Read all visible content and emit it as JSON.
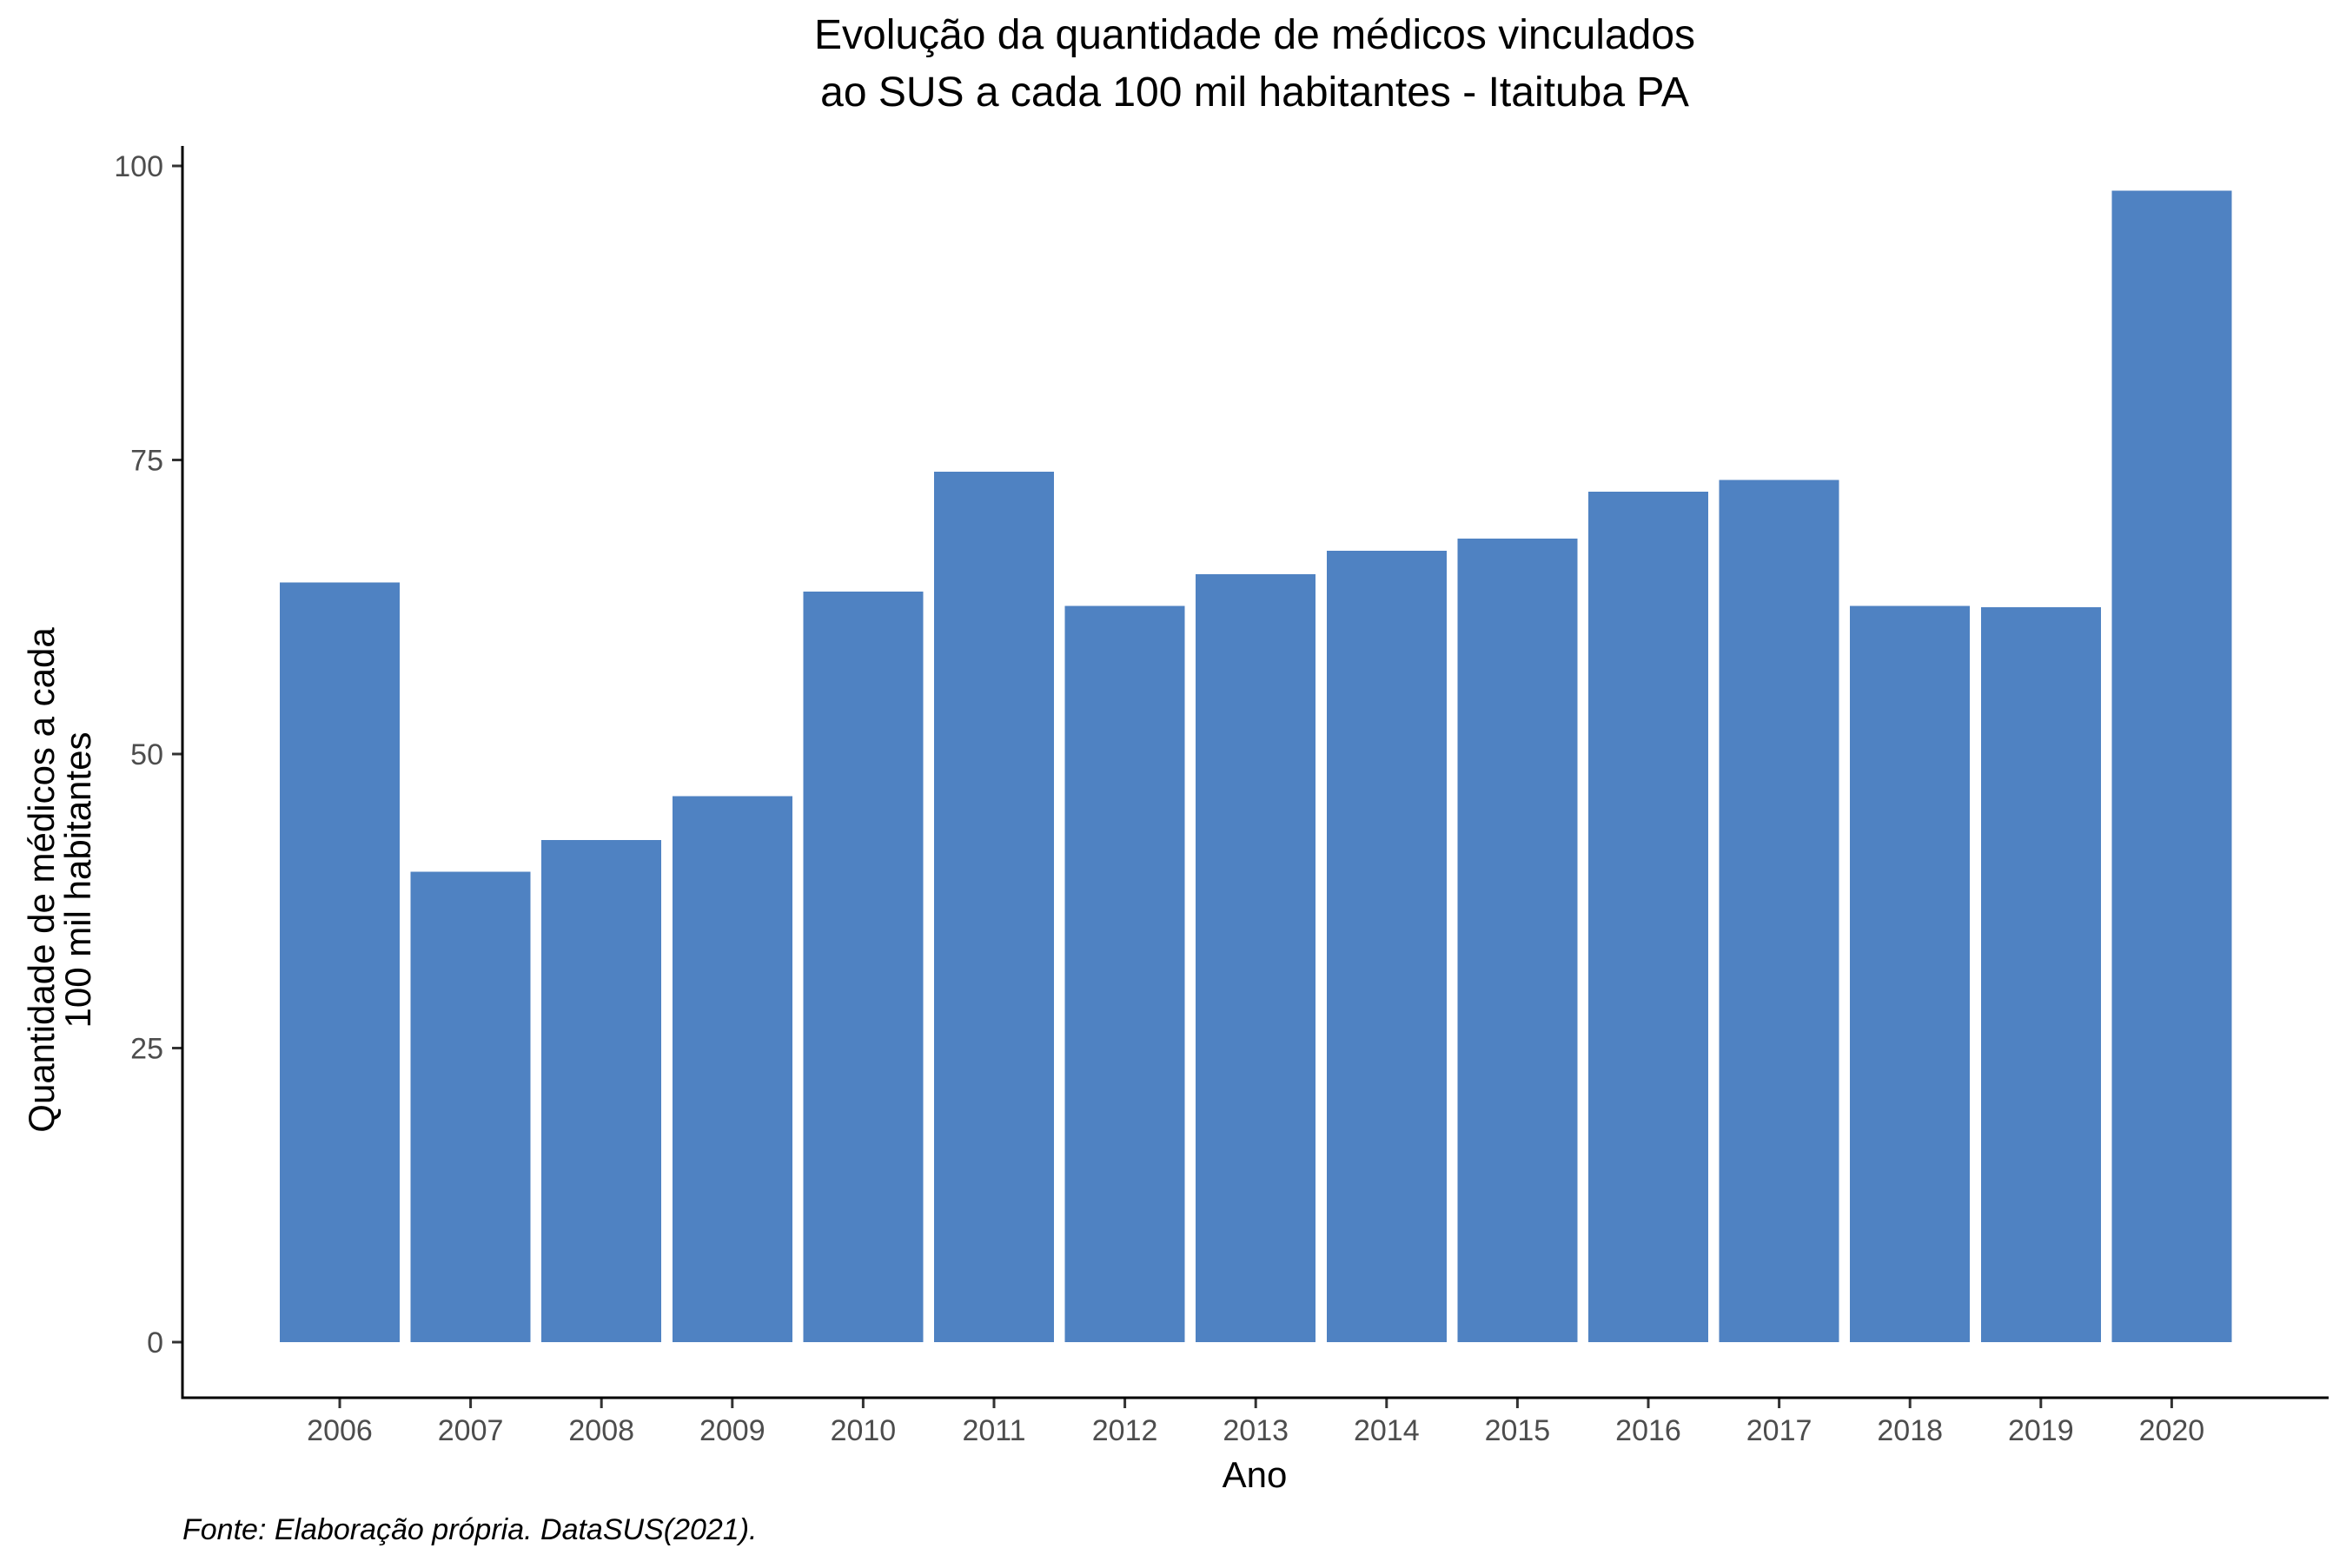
{
  "chart_data": {
    "type": "bar",
    "title_lines": [
      "Evolução da quantidade de médicos vinculados",
      "ao SUS a cada 100 mil habitantes - Itaituba PA"
    ],
    "xlabel": "Ano",
    "ylabel_lines": [
      "Quantidade de médicos a cada",
      "100 mil habitantes"
    ],
    "caption": "Fonte: Elaboração própria. DataSUS(2021).",
    "categories": [
      "2006",
      "2007",
      "2008",
      "2009",
      "2010",
      "2011",
      "2012",
      "2013",
      "2014",
      "2015",
      "2016",
      "2017",
      "2018",
      "2019",
      "2020"
    ],
    "values": [
      64.6,
      40.0,
      42.7,
      46.4,
      63.8,
      74.0,
      62.6,
      65.3,
      67.3,
      68.3,
      72.3,
      73.3,
      62.6,
      62.5,
      97.9
    ],
    "ylim": [
      0,
      100
    ],
    "yticks": [
      0,
      25,
      50,
      75,
      100
    ],
    "bar_color": "#4f82c2",
    "grid": false,
    "legend": "none"
  }
}
